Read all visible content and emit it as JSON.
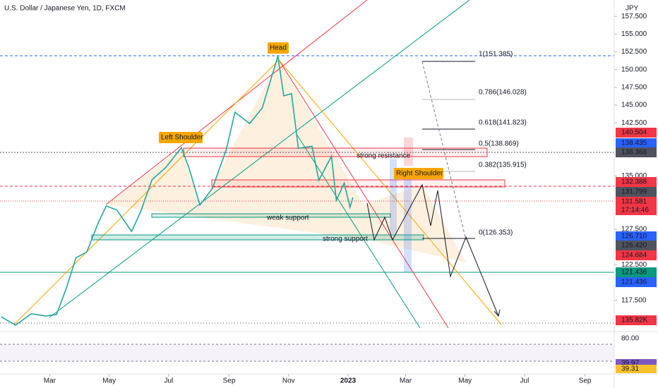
{
  "chart_data": {
    "type": "line",
    "title": "U.S. Dollar / Japanese Yen, 1D, FXCM",
    "currency": "JPY",
    "color": "#26a69a",
    "x": [
      "2022-01-10",
      "2022-01-25",
      "2022-02-10",
      "2022-02-25",
      "2022-03-08",
      "2022-03-18",
      "2022-03-28",
      "2022-04-08",
      "2022-04-20",
      "2022-04-28",
      "2022-05-09",
      "2022-05-24",
      "2022-06-02",
      "2022-06-14",
      "2022-06-28",
      "2022-07-14",
      "2022-07-22",
      "2022-08-02",
      "2022-08-15",
      "2022-08-29",
      "2022-09-07",
      "2022-09-22",
      "2022-10-05",
      "2022-10-14",
      "2022-10-21",
      "2022-10-27",
      "2022-11-04",
      "2022-11-11",
      "2022-11-25",
      "2022-12-02",
      "2022-12-15",
      "2022-12-20",
      "2022-12-28",
      "2023-01-03",
      "2023-01-06"
    ],
    "values": [
      115.2,
      114.0,
      115.6,
      115.3,
      115.5,
      119.2,
      123.5,
      124.3,
      128.5,
      130.8,
      130.2,
      127.2,
      129.9,
      134.5,
      136.2,
      139.0,
      136.1,
      130.9,
      133.3,
      138.7,
      144.0,
      142.4,
      144.6,
      148.7,
      151.9,
      146.3,
      146.6,
      138.9,
      139.2,
      134.4,
      137.8,
      131.6,
      134.0,
      130.6,
      132.0
    ],
    "xlim": [
      "2022-01-09",
      "2023-10-01"
    ],
    "xticks": [
      {
        "value": "2022-03-01",
        "label": "Mar"
      },
      {
        "value": "2022-05-01",
        "label": "May"
      },
      {
        "value": "2022-07-01",
        "label": "Jul"
      },
      {
        "value": "2022-09-01",
        "label": "Sep"
      },
      {
        "value": "2022-11-01",
        "label": "Nov"
      },
      {
        "value": "2023-01-01",
        "label": "2023"
      },
      {
        "value": "2023-03-01",
        "label": "Mar"
      },
      {
        "value": "2023-05-01",
        "label": "May"
      },
      {
        "value": "2023-07-01",
        "label": "Jul"
      },
      {
        "value": "2023-09-01",
        "label": "Sep"
      }
    ],
    "ylim": [
      113.1,
      159.8
    ],
    "yticks": [
      {
        "value": 157.5,
        "label": "157.500"
      },
      {
        "value": 155,
        "label": "155.000"
      },
      {
        "value": 152.5,
        "label": "152.500"
      },
      {
        "value": 150,
        "label": "150.000"
      },
      {
        "value": 147.5,
        "label": "147.500"
      },
      {
        "value": 145,
        "label": "145.000"
      },
      {
        "value": 142.5,
        "label": "142.500"
      },
      {
        "value": 135,
        "label": "135.000"
      },
      {
        "value": 127.5,
        "label": "127.500"
      },
      {
        "value": 122.5,
        "label": "122.500"
      },
      {
        "value": 117.5,
        "label": "117.500"
      }
    ]
  },
  "annotations": {
    "head": "Head",
    "left_shoulder": "Left Shoulder",
    "right_shoulder": "Right Shoulder",
    "strong_resistance": "strong resistance",
    "weak_support": "weak support",
    "strong_support": "strong support"
  },
  "fib_levels": [
    {
      "label": "1(151.385)",
      "color": "#131722"
    },
    {
      "label": "0.786(146.028)",
      "color": "#9598a1"
    },
    {
      "label": "0.618(141.823)",
      "color": "#131722"
    },
    {
      "label": "0.5(138.869)",
      "color": "#131722"
    },
    {
      "label": "0.382(135.915)",
      "color": "#9598a1"
    },
    {
      "label": "0(126.353)",
      "color": "#131722"
    }
  ],
  "price_tags": [
    {
      "label": "140.504",
      "color": "#f23645"
    },
    {
      "label": "138.435",
      "color": "#2962ff"
    },
    {
      "label": "138.368",
      "color": "#50535e"
    },
    {
      "label": "132.388",
      "color": "#f23645"
    },
    {
      "label": "131.799",
      "color": "#50535e"
    },
    {
      "label": "131.581",
      "color": "#f23645"
    },
    {
      "label": "17:14:46",
      "color": "#f23645"
    },
    {
      "label": "126.710",
      "color": "#2962ff"
    },
    {
      "label": "126.420",
      "color": "#50535e"
    },
    {
      "label": "124.684",
      "color": "#f23645"
    },
    {
      "label": "121.436",
      "color": "#089981"
    },
    {
      "label": "121.436",
      "color": "#2962ff"
    },
    {
      "label": "135.82K",
      "color": "#f23645"
    }
  ],
  "rsi": {
    "level": "80.00",
    "tags": [
      {
        "label": "39.97",
        "color": "#7e57c2"
      },
      {
        "label": "39.31",
        "color": "#fbc02d"
      }
    ]
  }
}
